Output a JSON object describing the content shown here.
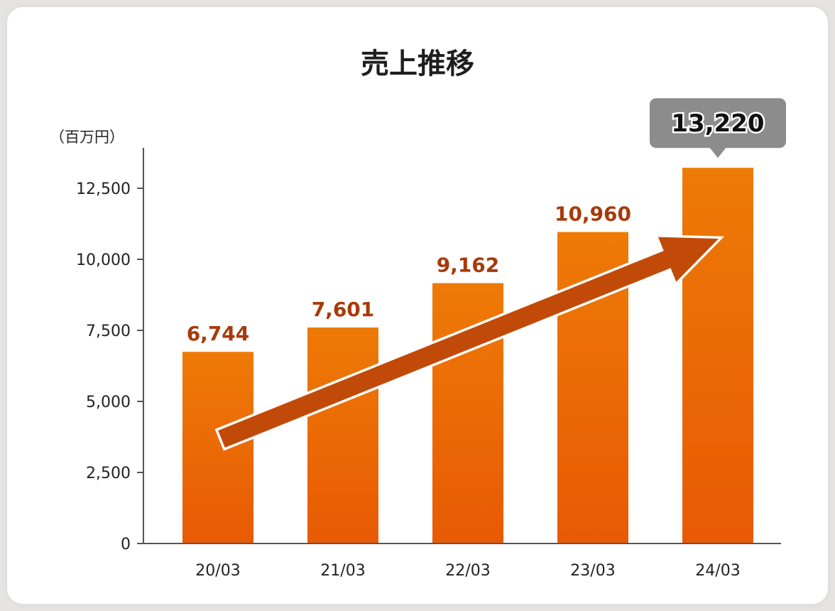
{
  "chart_data": {
    "type": "bar",
    "title": "売上推移",
    "unit_label": "（百万円）",
    "categories": [
      "20/03",
      "21/03",
      "22/03",
      "23/03",
      "24/03"
    ],
    "values": [
      6744,
      7601,
      9162,
      10960,
      13220
    ],
    "value_labels": [
      "6,744",
      "7,601",
      "9,162",
      "10,960",
      "13,220"
    ],
    "yticks": [
      "0",
      "2,500",
      "5,000",
      "7,500",
      "10,000",
      "12,500"
    ],
    "ytick_values": [
      0,
      2500,
      5000,
      7500,
      10000,
      12500
    ],
    "ylim": [
      0,
      13800
    ],
    "highlight_index": 4,
    "grid": false,
    "trend_arrow": true,
    "colors": {
      "bar_top": "#ee7a06",
      "bar_bottom": "#e85a04",
      "label": "#a83a0a",
      "callout": "#8c8c8c",
      "arrow": "#c24a08"
    }
  }
}
